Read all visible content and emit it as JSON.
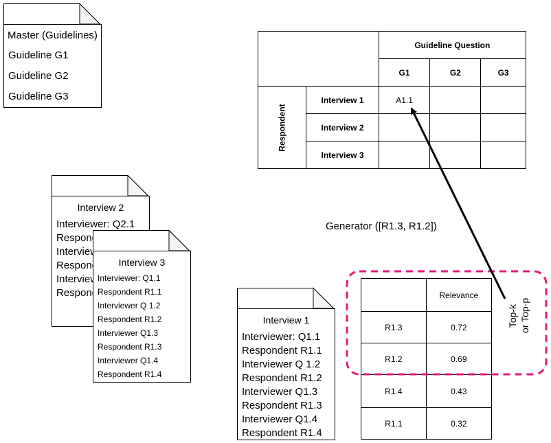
{
  "master": {
    "title": "Master (Guidelines)",
    "items": [
      "Guideline G1",
      "Guideline G2",
      "Guideline G3"
    ]
  },
  "interview2": {
    "title": "Interview 2",
    "lines": [
      "Interviewer: Q2.1",
      "Respondent",
      "Interviewer",
      "Respondent",
      "Interviewer",
      "Respondent"
    ]
  },
  "interview3": {
    "title": "Interview 3",
    "lines": [
      "Interviewer: Q1.1",
      "Respondent R1.1",
      "Interviewer Q 1.2",
      "Respondent R1.2",
      "Interviewer Q1.3",
      "Respondent R1.3",
      "Interviewer Q1.4",
      "Respondent R1.4"
    ]
  },
  "interview1": {
    "title": "Interview 1",
    "lines": [
      "Interviewer: Q1.1",
      "Respondent R1.1",
      "Interviewer Q 1.2",
      "Respondent R1.2",
      "Interviewer Q1.3",
      "Respondent R1.3",
      "Interviewer Q1.4",
      "Respondent R1.4"
    ]
  },
  "matrix": {
    "col_header": "Guideline Question",
    "columns": [
      "G1",
      "G2",
      "G3"
    ],
    "row_header": "Respondent",
    "rows": [
      "Interview 1",
      "Interview 2",
      "Interview 3"
    ],
    "cell_a11": "A1.1"
  },
  "generator_label": "Generator ([R1.3, R1.2])",
  "relevance": {
    "header": "Relevance",
    "rows": [
      {
        "id": "R1.3",
        "value": "0.72"
      },
      {
        "id": "R1.2",
        "value": "0.69"
      },
      {
        "id": "R1.4",
        "value": "0.43"
      },
      {
        "id": "R1.1",
        "value": "0.32"
      }
    ]
  },
  "topk_label": [
    "Top-k",
    "or Top-p"
  ],
  "colors": {
    "highlight": "#e6197a",
    "stroke": "#000000"
  }
}
